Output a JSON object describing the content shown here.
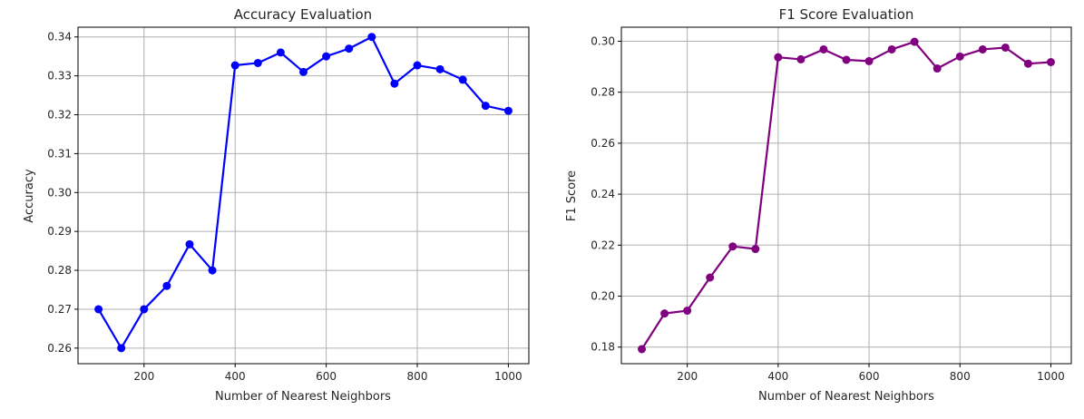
{
  "chart_data": [
    {
      "type": "line",
      "title": "Accuracy Evaluation",
      "xlabel": "Number of Nearest Neighbors",
      "ylabel": "Accuracy",
      "grid": true,
      "color": "#0000ff",
      "xlim": [
        55,
        1045
      ],
      "ylim": [
        0.256,
        0.3425
      ],
      "xticks": [
        200,
        400,
        600,
        800,
        1000
      ],
      "xtick_labels": [
        "200",
        "400",
        "600",
        "800",
        "1000"
      ],
      "yticks": [
        0.26,
        0.27,
        0.28,
        0.29,
        0.3,
        0.31,
        0.32,
        0.33,
        0.34
      ],
      "ytick_labels": [
        "0.26",
        "0.27",
        "0.28",
        "0.29",
        "0.30",
        "0.31",
        "0.32",
        "0.33",
        "0.34"
      ],
      "series": [
        {
          "name": "Accuracy",
          "x": [
            100,
            150,
            200,
            250,
            300,
            350,
            400,
            450,
            500,
            550,
            600,
            650,
            700,
            750,
            800,
            850,
            900,
            950,
            1000
          ],
          "y": [
            0.27,
            0.26,
            0.27,
            0.276,
            0.2867,
            0.28,
            0.3327,
            0.3333,
            0.336,
            0.331,
            0.335,
            0.337,
            0.34,
            0.328,
            0.3327,
            0.3317,
            0.329,
            0.3223,
            0.321
          ]
        }
      ]
    },
    {
      "type": "line",
      "title": "F1 Score Evaluation",
      "xlabel": "Number of Nearest Neighbors",
      "ylabel": "F1 Score",
      "grid": true,
      "color": "#800080",
      "xlim": [
        55,
        1045
      ],
      "ylim": [
        0.1735,
        0.3055
      ],
      "xticks": [
        200,
        400,
        600,
        800,
        1000
      ],
      "xtick_labels": [
        "200",
        "400",
        "600",
        "800",
        "1000"
      ],
      "yticks": [
        0.18,
        0.2,
        0.22,
        0.24,
        0.26,
        0.28,
        0.3
      ],
      "ytick_labels": [
        "0.18",
        "0.20",
        "0.22",
        "0.24",
        "0.26",
        "0.28",
        "0.30"
      ],
      "series": [
        {
          "name": "F1 Score",
          "x": [
            100,
            150,
            200,
            250,
            300,
            350,
            400,
            450,
            500,
            550,
            600,
            650,
            700,
            750,
            800,
            850,
            900,
            950,
            1000
          ],
          "y": [
            0.1792,
            0.1932,
            0.1943,
            0.2073,
            0.2195,
            0.2185,
            0.2937,
            0.2929,
            0.2968,
            0.2927,
            0.2922,
            0.2968,
            0.2998,
            0.2893,
            0.294,
            0.2968,
            0.2975,
            0.2912,
            0.2918
          ]
        }
      ]
    }
  ]
}
